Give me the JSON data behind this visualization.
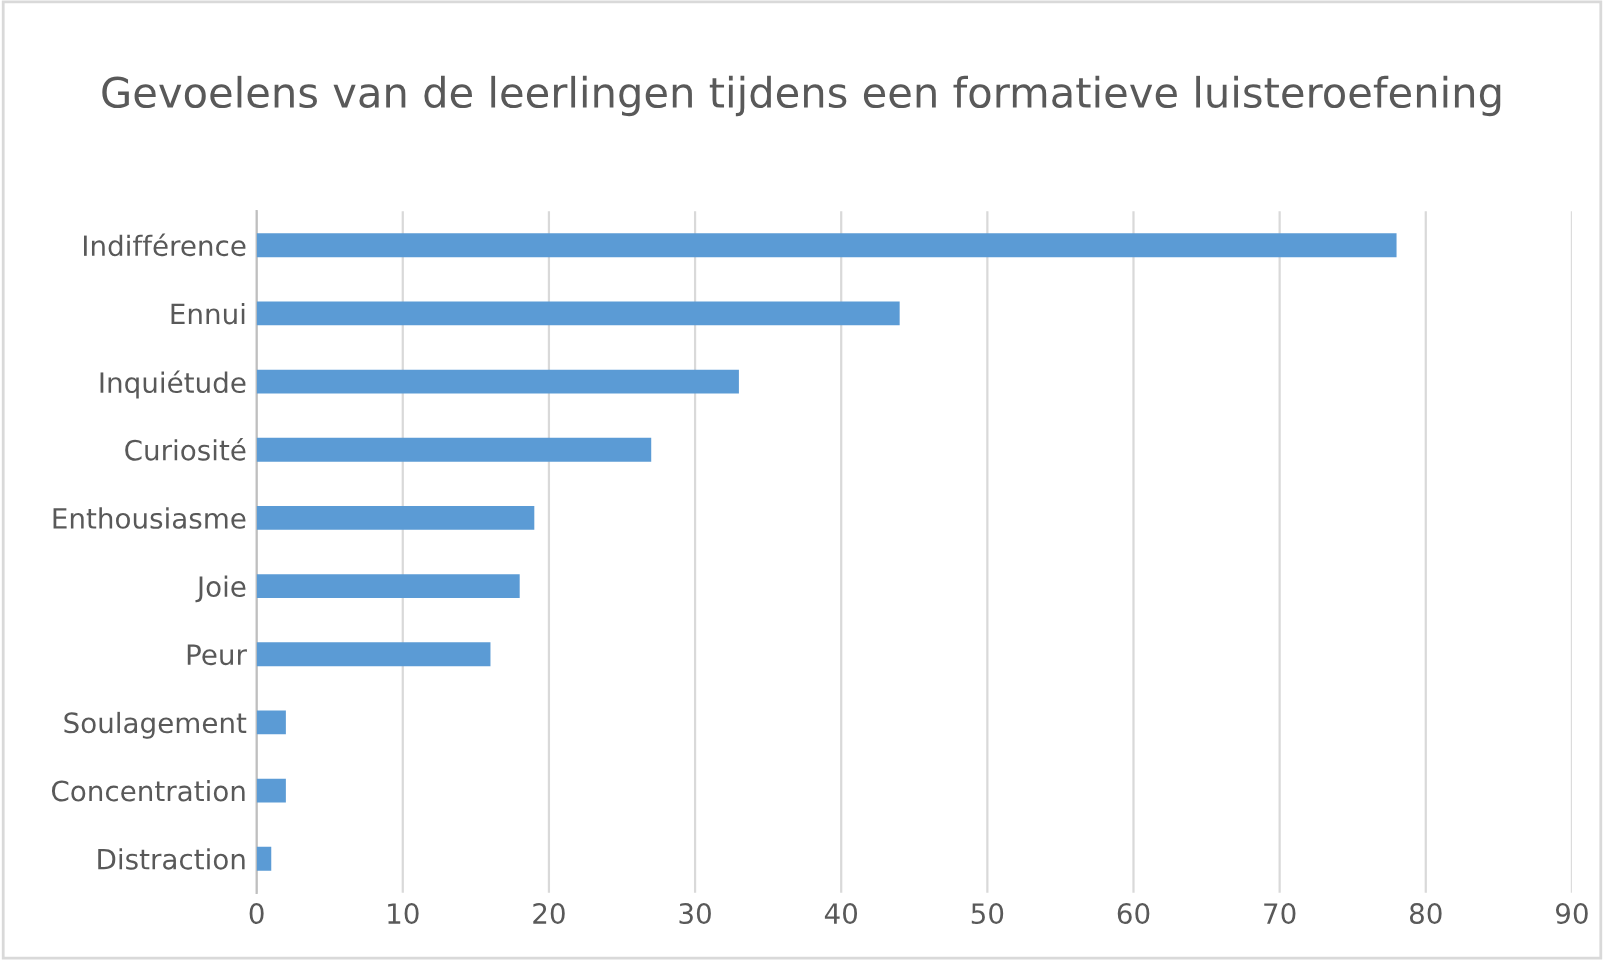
{
  "chart_data": {
    "type": "bar",
    "orientation": "horizontal",
    "title": "Gevoelens van de leerlingen tijdens een formatieve luisteroefening",
    "categories": [
      "Indifférence",
      "Ennui",
      "Inquiétude",
      "Curiosité",
      "Enthousiasme",
      "Joie",
      "Peur",
      "Soulagement",
      "Concentration",
      "Distraction"
    ],
    "values": [
      78,
      44,
      33,
      27,
      19,
      18,
      16,
      2,
      2,
      1
    ],
    "color": "#5b9bd5",
    "xlim": [
      0,
      90
    ],
    "xticks": [
      0,
      10,
      20,
      30,
      40,
      50,
      60,
      70,
      80,
      90
    ],
    "grid": "x",
    "legend": false
  }
}
